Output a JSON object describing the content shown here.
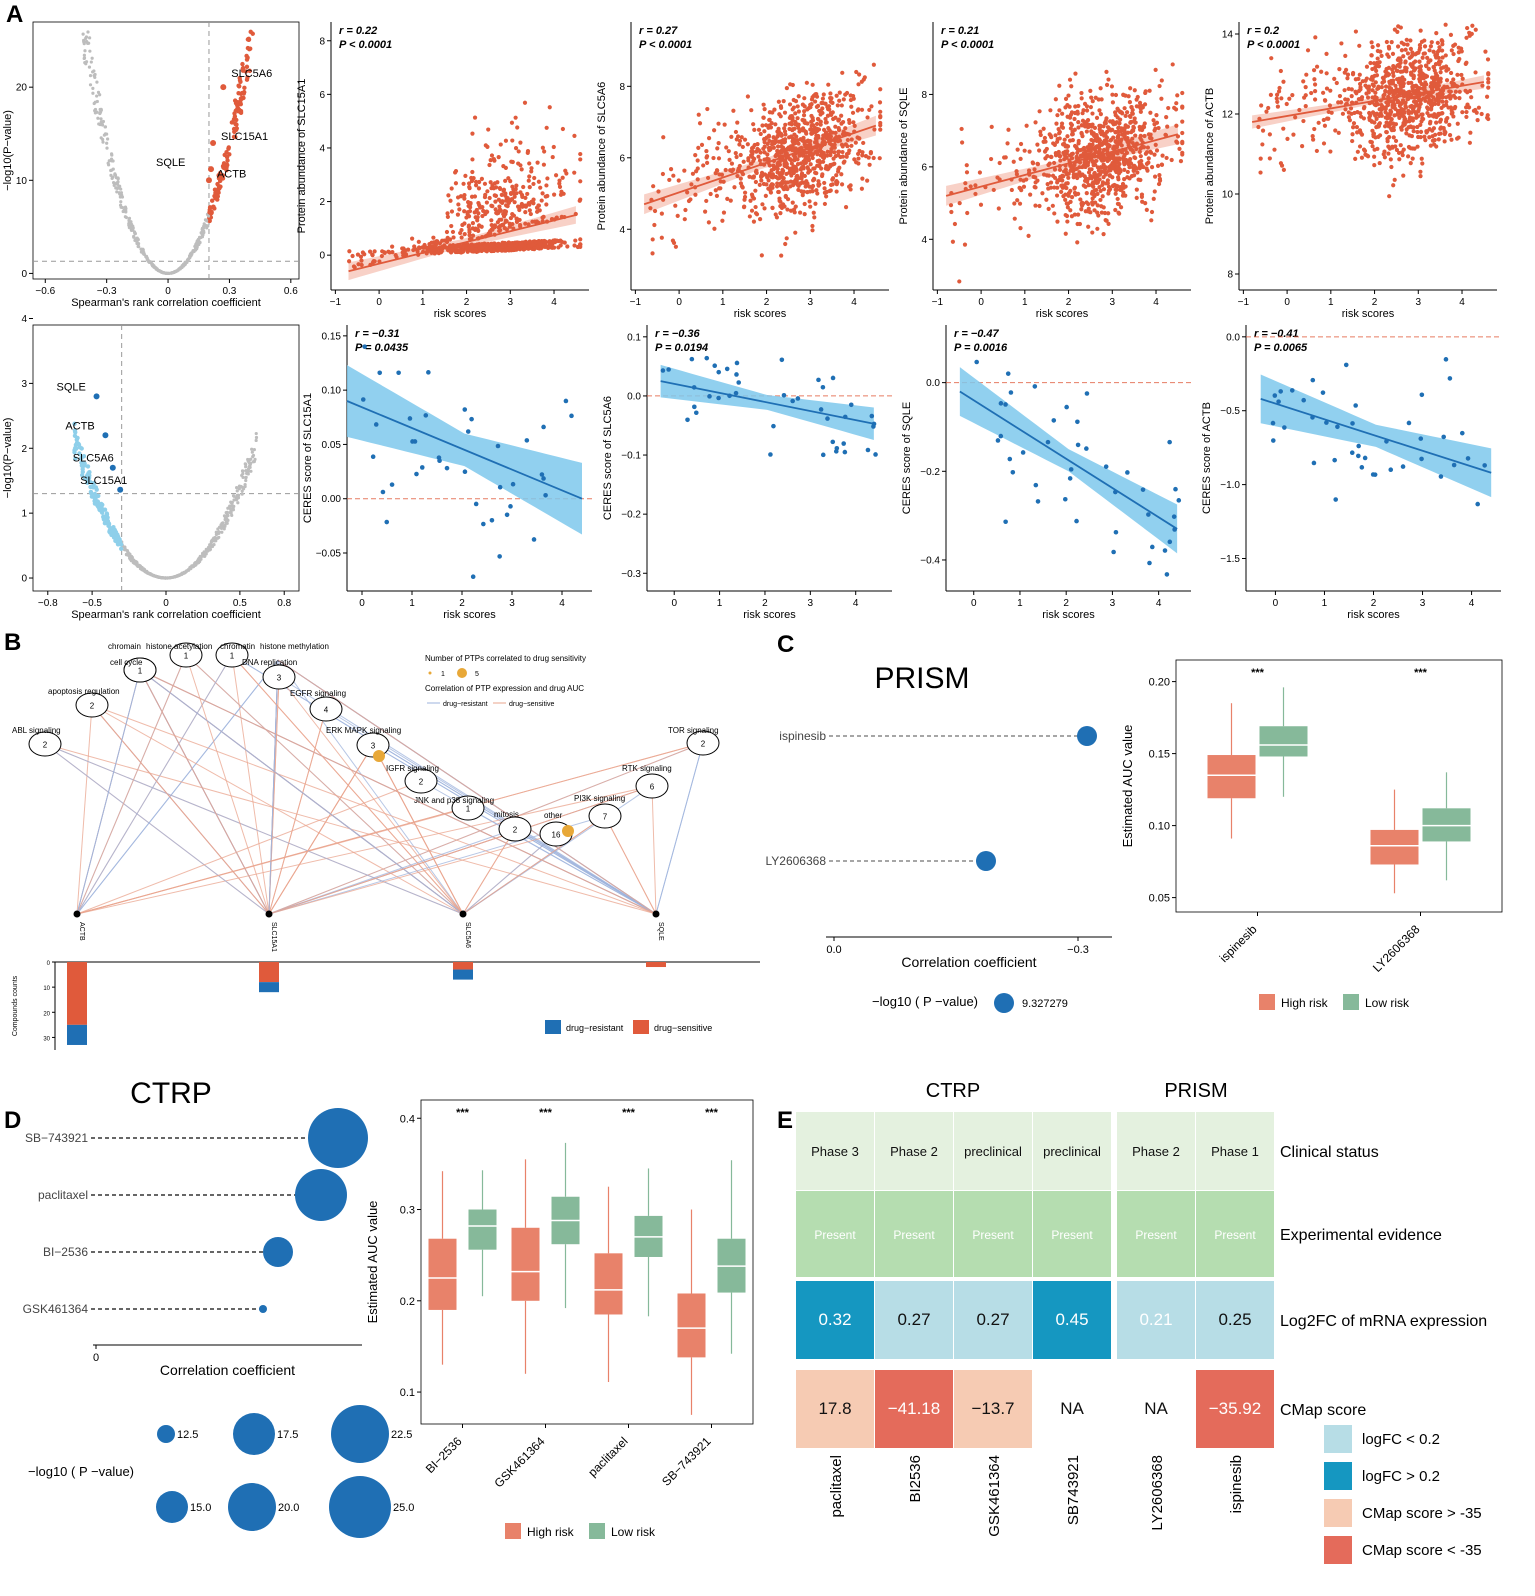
{
  "colors": {
    "red": "#E05A3B",
    "blue": "#1F6FB4",
    "lightblue": "#8ECFEA",
    "grey": "#BDBDBD",
    "highrisk": "#E8826A",
    "lowrisk": "#86B99A",
    "teal": "#1597C1",
    "pale": "#B7DDE6",
    "peach": "#F6CBB3",
    "salmon": "#E46B5B",
    "greenTop": "#E4F1DF",
    "greenMid": "#B5DDB0",
    "orange": "#E8A838"
  },
  "panels": [
    "A",
    "B",
    "C",
    "D",
    "E"
  ],
  "chart_data": [
    {
      "id": "A1",
      "type": "scatter",
      "title": "",
      "xlabel": "Spearman's rank correlation coefficient",
      "ylabel": "−log10(P−value)",
      "xticks": [
        "−0.6",
        "−0.3",
        "0",
        "0.3",
        "0.6"
      ],
      "xtickv": [
        -0.6,
        -0.3,
        0,
        0.3,
        0.6
      ],
      "yticks": [
        "0",
        "10",
        "20"
      ],
      "ytickv": [
        0,
        10,
        20
      ],
      "xlim": [
        -0.66,
        0.64
      ],
      "ylim": [
        -0.6,
        27
      ],
      "threshold_x": 0.2,
      "threshold_y": 1.3,
      "labels": [
        {
          "text": "SLC5A6",
          "x": 0.27,
          "y": 20
        },
        {
          "text": "SLC15A1",
          "x": 0.22,
          "y": 14
        },
        {
          "text": "SQLE",
          "x": 0.21,
          "y": 11.2
        },
        {
          "text": "ACTB",
          "x": 0.2,
          "y": 10
        }
      ]
    },
    {
      "id": "A2",
      "type": "scatter",
      "xlabel": "risk scores",
      "ylabel": "Protein abundance of SLC15A1",
      "stat_r": "r = 0.22",
      "stat_p": "P < 0.0001",
      "xticks": [
        "−1",
        "0",
        "1",
        "2",
        "3",
        "4"
      ],
      "xtickv": [
        -1,
        0,
        1,
        2,
        3,
        4
      ],
      "yticks": [
        "0",
        "2",
        "4",
        "6",
        "8"
      ],
      "ytickv": [
        0,
        2,
        4,
        6,
        8
      ],
      "xlim": [
        -1.1,
        4.8
      ],
      "ylim": [
        -1.3,
        8.7
      ],
      "fit": [
        [
          -0.7,
          -0.6
        ],
        [
          4.5,
          1.5
        ]
      ],
      "band": 0.3
    },
    {
      "id": "A3",
      "type": "scatter",
      "xlabel": "risk scores",
      "ylabel": "Protein abundance of SLC5A6",
      "stat_r": "r = 0.27",
      "stat_p": "P < 0.0001",
      "xticks": [
        "−1",
        "0",
        "1",
        "2",
        "3",
        "4"
      ],
      "xtickv": [
        -1,
        0,
        1,
        2,
        3,
        4
      ],
      "yticks": [
        "4",
        "6",
        "8"
      ],
      "ytickv": [
        4,
        6,
        8
      ],
      "xlim": [
        -1.1,
        4.8
      ],
      "ylim": [
        2.3,
        9.8
      ],
      "fit": [
        [
          -0.8,
          4.7
        ],
        [
          4.5,
          6.9
        ]
      ],
      "band": 0.25
    },
    {
      "id": "A4",
      "type": "scatter",
      "xlabel": "risk scores",
      "ylabel": "Protein abundance of SQLE",
      "stat_r": "r = 0.21",
      "stat_p": "P < 0.0001",
      "xticks": [
        "−1",
        "0",
        "1",
        "2",
        "3",
        "4"
      ],
      "xtickv": [
        -1,
        0,
        1,
        2,
        3,
        4
      ],
      "yticks": [
        "4",
        "6",
        "8"
      ],
      "ytickv": [
        4,
        6,
        8
      ],
      "xlim": [
        -1.1,
        4.8
      ],
      "ylim": [
        2.6,
        10
      ],
      "fit": [
        [
          -0.8,
          5.2
        ],
        [
          4.5,
          6.9
        ]
      ],
      "band": 0.25
    },
    {
      "id": "A5",
      "type": "scatter",
      "xlabel": "risk scores",
      "ylabel": "Protein abundance of ACTB",
      "stat_r": "r = 0.2",
      "stat_p": "P < 0.0001",
      "xticks": [
        "−1",
        "0",
        "1",
        "2",
        "3",
        "4"
      ],
      "xtickv": [
        -1,
        0,
        1,
        2,
        3,
        4
      ],
      "yticks": [
        "8",
        "10",
        "12",
        "14"
      ],
      "ytickv": [
        8,
        10,
        12,
        14
      ],
      "xlim": [
        -1.1,
        4.8
      ],
      "ylim": [
        7.6,
        14.3
      ],
      "fit": [
        [
          -0.8,
          11.8
        ],
        [
          4.5,
          12.8
        ]
      ],
      "band": 0.15
    },
    {
      "id": "A6",
      "type": "scatter",
      "xlabel": "Spearman's rank correlation coefficient",
      "ylabel": "−log10(P−value)",
      "xticks": [
        "−0.8",
        "−0.5",
        "0",
        "0.5",
        "0.8"
      ],
      "xtickv": [
        -0.8,
        -0.5,
        0,
        0.5,
        0.8
      ],
      "yticks": [
        "0",
        "1",
        "2",
        "3",
        "4"
      ],
      "ytickv": [
        0,
        1,
        2,
        3,
        4
      ],
      "xlim": [
        -0.9,
        0.9
      ],
      "ylim": [
        -0.2,
        3.9
      ],
      "threshold_x": -0.3,
      "threshold_y": 1.3,
      "labels": [
        {
          "text": "SQLE",
          "x": -0.47,
          "y": 2.8
        },
        {
          "text": "ACTB",
          "x": -0.41,
          "y": 2.2
        },
        {
          "text": "SLC5A6",
          "x": -0.36,
          "y": 1.7
        },
        {
          "text": "SLC15A1",
          "x": -0.31,
          "y": 1.36
        }
      ]
    },
    {
      "id": "A7",
      "type": "scatter",
      "xlabel": "risk scores",
      "ylabel": "CERES score of SLC15A1",
      "stat_r": "r = −0.31",
      "stat_p": "P = 0.0435",
      "xticks": [
        "0",
        "1",
        "2",
        "3",
        "4"
      ],
      "xtickv": [
        0,
        1,
        2,
        3,
        4
      ],
      "yticks": [
        "−0.05",
        "0.00",
        "0.05",
        "0.10",
        "0.15"
      ],
      "ytickv": [
        -0.05,
        0,
        0.05,
        0.1,
        0.15
      ],
      "xlim": [
        -0.3,
        4.6
      ],
      "ylim": [
        -0.085,
        0.16
      ],
      "fit": [
        [
          -0.3,
          0.09
        ],
        [
          4.4,
          0.0
        ]
      ],
      "band": 0.03,
      "hline": 0
    },
    {
      "id": "A8",
      "type": "scatter",
      "xlabel": "risk scores",
      "ylabel": "CERES score of SLC5A6",
      "stat_r": "r = −0.36",
      "stat_p": "P = 0.0194",
      "xticks": [
        "0",
        "1",
        "2",
        "3",
        "4"
      ],
      "xtickv": [
        0,
        1,
        2,
        3,
        4
      ],
      "yticks": [
        "−0.3",
        "−0.2",
        "−0.1",
        "0.0",
        "0.1"
      ],
      "ytickv": [
        -0.3,
        -0.2,
        -0.1,
        0,
        0.1
      ],
      "xlim": [
        -0.6,
        4.8
      ],
      "ylim": [
        -0.33,
        0.12
      ],
      "fit": [
        [
          -0.3,
          0.025
        ],
        [
          4.4,
          -0.047
        ]
      ],
      "band": 0.025,
      "hline": 0
    },
    {
      "id": "A9",
      "type": "scatter",
      "xlabel": "risk scores",
      "ylabel": "CERES score of SQLE",
      "stat_r": "r = −0.47",
      "stat_p": "P = 0.0016",
      "xticks": [
        "0",
        "1",
        "2",
        "3",
        "4"
      ],
      "xtickv": [
        0,
        1,
        2,
        3,
        4
      ],
      "yticks": [
        "−0.4",
        "−0.2",
        "0.0"
      ],
      "ytickv": [
        -0.4,
        -0.2,
        0
      ],
      "xlim": [
        -0.6,
        4.7
      ],
      "ylim": [
        -0.47,
        0.13
      ],
      "fit": [
        [
          -0.3,
          -0.02
        ],
        [
          4.4,
          -0.33
        ]
      ],
      "band": 0.05,
      "hline": 0
    },
    {
      "id": "A10",
      "type": "scatter",
      "xlabel": "risk scores",
      "ylabel": "CERES score of ACTB",
      "stat_r": "r = −0.41",
      "stat_p": "P = 0.0065",
      "xticks": [
        "0",
        "1",
        "2",
        "3",
        "4"
      ],
      "xtickv": [
        0,
        1,
        2,
        3,
        4
      ],
      "yticks": [
        "−1.5",
        "−1.0",
        "−0.5",
        "0.0"
      ],
      "ytickv": [
        -1.5,
        -1,
        -0.5,
        0
      ],
      "xlim": [
        -0.6,
        4.6
      ],
      "ylim": [
        -1.72,
        0.08
      ],
      "fit": [
        [
          -0.3,
          -0.42
        ],
        [
          4.4,
          -0.92
        ]
      ],
      "band": 0.15,
      "hline": 0
    },
    {
      "id": "B",
      "type": "network",
      "legend_title": "Number of PTPs correlated to drug sensitivity",
      "legend_sizes": [
        "1",
        "5"
      ],
      "legend_title2": "Correlation of PTP expression and drug AUC",
      "legend_lines": [
        "drug−resistant",
        "drug−sensitive"
      ],
      "nodes": [
        {
          "label": "chromain",
          "n": "1"
        },
        {
          "label": "histone acetylation",
          "n": "1"
        },
        {
          "label": "chromatin",
          "n": "1"
        },
        {
          "label": "histone methylation",
          "n": ""
        },
        {
          "label": "cell cycle",
          "n": "1"
        },
        {
          "label": "DNA replication",
          "n": "3"
        },
        {
          "label": "apoptosis regulation",
          "n": "2"
        },
        {
          "label": "EGFR signaling",
          "n": "4"
        },
        {
          "label": "ABL signaling",
          "n": "2"
        },
        {
          "label": "ERK MAPK signaling",
          "n": "3"
        },
        {
          "label": "TOR signaling",
          "n": "2"
        },
        {
          "label": "IGFR signaling",
          "n": "2"
        },
        {
          "label": "RTK signaling",
          "n": "6"
        },
        {
          "label": "JNK and p38 signaling",
          "n": "1"
        },
        {
          "label": "PI3K signaling",
          "n": "7"
        },
        {
          "label": "mitosis",
          "n": "2"
        },
        {
          "label": "other",
          "n": "16"
        }
      ],
      "genes": [
        "ACTB",
        "SLC15A1",
        "SLC5A6",
        "SQLE"
      ],
      "bar_ylabel": "Compounds counts",
      "bar_yticks": [
        "0",
        "10",
        "20",
        "30"
      ],
      "bars": [
        {
          "gene": "ACTB",
          "sensitive": 25,
          "resistant": 8
        },
        {
          "gene": "SLC15A1",
          "sensitive": 8,
          "resistant": 4
        },
        {
          "gene": "SLC5A6",
          "sensitive": 3,
          "resistant": 4
        },
        {
          "gene": "SQLE",
          "sensitive": 2,
          "resistant": 0
        }
      ],
      "bar_legend": [
        "drug−resistant",
        "drug−sensitive"
      ]
    },
    {
      "id": "C1",
      "type": "dot",
      "title": "PRISM",
      "xlabel": "Correlation coefficient",
      "xticks": [
        "0.0",
        "−0.3"
      ],
      "items": [
        {
          "name": "ispinesib",
          "value": -0.31
        },
        {
          "name": "LY2606368",
          "value": -0.19
        }
      ],
      "size_legend_label": "−log10 ( P −value)",
      "size_legend_value": "9.327279"
    },
    {
      "id": "C2",
      "type": "boxplot",
      "ylabel": "Estimated AUC value",
      "yticks": [
        "0.05",
        "0.10",
        "0.15",
        "0.20"
      ],
      "ytickv": [
        0.05,
        0.1,
        0.15,
        0.2
      ],
      "ylim": [
        0.04,
        0.215
      ],
      "categories": [
        "ispinesib",
        "LY2606368"
      ],
      "sig": [
        "***",
        "***"
      ],
      "boxes": [
        [
          {
            "min": 0.091,
            "q1": 0.119,
            "med": 0.135,
            "q3": 0.149,
            "max": 0.185
          },
          {
            "min": 0.12,
            "q1": 0.148,
            "med": 0.156,
            "q3": 0.169,
            "max": 0.196
          }
        ],
        [
          {
            "min": 0.053,
            "q1": 0.073,
            "med": 0.086,
            "q3": 0.097,
            "max": 0.125
          },
          {
            "min": 0.062,
            "q1": 0.089,
            "med": 0.1,
            "q3": 0.112,
            "max": 0.137
          }
        ]
      ],
      "legend": [
        "High risk",
        "Low risk"
      ]
    },
    {
      "id": "D1",
      "type": "dot",
      "title": "CTRP",
      "xlabel": "Correlation coefficient",
      "xticks": [
        "0"
      ],
      "items": [
        {
          "name": "SB−743921",
          "value": 24.8
        },
        {
          "name": "paclitaxel",
          "value": 23.0
        },
        {
          "name": "BI−2536",
          "value": 16.0
        },
        {
          "name": "GSK461364",
          "value": 10.5
        }
      ],
      "size_legend_label": "−log10 ( P −value)",
      "size_legend_values": [
        "12.5",
        "17.5",
        "22.5",
        "15.0",
        "20.0",
        "25.0"
      ]
    },
    {
      "id": "D2",
      "type": "boxplot",
      "ylabel": "Estimated AUC value",
      "yticks": [
        "0.1",
        "0.2",
        "0.3",
        "0.4"
      ],
      "ytickv": [
        0.1,
        0.2,
        0.3,
        0.4
      ],
      "ylim": [
        0.065,
        0.42
      ],
      "categories": [
        "BI−2536",
        "GSK461364",
        "paclitaxel",
        "SB−743921"
      ],
      "sig": [
        "***",
        "***",
        "***",
        "***"
      ],
      "boxes": [
        [
          {
            "min": 0.13,
            "q1": 0.19,
            "med": 0.225,
            "q3": 0.268,
            "max": 0.342
          },
          {
            "min": 0.205,
            "q1": 0.256,
            "med": 0.282,
            "q3": 0.3,
            "max": 0.343
          }
        ],
        [
          {
            "min": 0.12,
            "q1": 0.2,
            "med": 0.232,
            "q3": 0.28,
            "max": 0.355
          },
          {
            "min": 0.192,
            "q1": 0.262,
            "med": 0.288,
            "q3": 0.314,
            "max": 0.373
          }
        ],
        [
          {
            "min": 0.111,
            "q1": 0.185,
            "med": 0.212,
            "q3": 0.252,
            "max": 0.325
          },
          {
            "min": 0.183,
            "q1": 0.248,
            "med": 0.27,
            "q3": 0.293,
            "max": 0.345
          }
        ],
        [
          {
            "min": 0.075,
            "q1": 0.138,
            "med": 0.17,
            "q3": 0.208,
            "max": 0.3
          },
          {
            "min": 0.142,
            "q1": 0.209,
            "med": 0.238,
            "q3": 0.268,
            "max": 0.354
          }
        ]
      ],
      "legend": [
        "High risk",
        "Low risk"
      ]
    },
    {
      "id": "E",
      "type": "table",
      "groups": [
        "CTRP",
        "PRISM"
      ],
      "columns": [
        "paclitaxel",
        "BI2536",
        "GSK461364",
        "SB743921",
        "LY2606368",
        "ispinesib"
      ],
      "rows": [
        {
          "label": "Clinical status",
          "cells": [
            "Phase 3",
            "Phase 2",
            "preclinical",
            "preclinical",
            "Phase 2",
            "Phase 1"
          ]
        },
        {
          "label": "Experimental evidence",
          "cells": [
            "Present",
            "Present",
            "Present",
            "Present",
            "Present",
            "Present"
          ]
        },
        {
          "label": "Log2FC of mRNA expression",
          "cells": [
            "0.32",
            "0.27",
            "0.27",
            "0.45",
            "0.21",
            "0.25"
          ]
        },
        {
          "label": "CMap score",
          "cells": [
            "17.8",
            "−41.18",
            "−13.7",
            "NA",
            "NA",
            "−35.92"
          ]
        }
      ],
      "legend": [
        "logFC < 0.2",
        "logFC > 0.2",
        "CMap score > -35",
        "CMap score < -35"
      ]
    }
  ]
}
